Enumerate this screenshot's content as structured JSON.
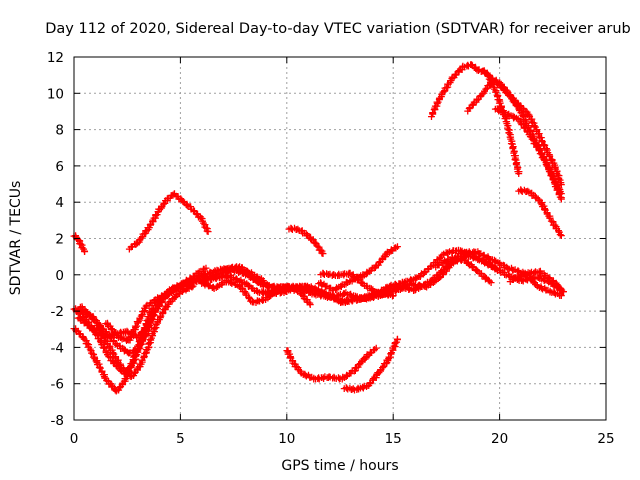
{
  "chart_data": {
    "type": "scatter",
    "title": "Day 112 of 2020, Sidereal Day-to-day VTEC variation (SDTVAR) for receiver arub",
    "xlabel": "GPS time / hours",
    "ylabel": "SDTVAR / TECUs",
    "xlim": [
      0,
      25
    ],
    "ylim": [
      -8,
      12
    ],
    "xticks": [
      0,
      5,
      10,
      15,
      20,
      25
    ],
    "yticks": [
      -8,
      -6,
      -4,
      -2,
      0,
      2,
      4,
      6,
      8,
      10,
      12
    ],
    "grid": true,
    "legend": "none",
    "marker_color": "#ff0000",
    "series": [
      {
        "name": "arc-01",
        "points": [
          [
            0.0,
            2.2
          ],
          [
            0.2,
            2.0
          ],
          [
            0.5,
            1.3
          ]
        ]
      },
      {
        "name": "arc-02",
        "points": [
          [
            2.6,
            1.5
          ],
          [
            3.0,
            1.8
          ],
          [
            3.5,
            2.6
          ],
          [
            4.0,
            3.6
          ],
          [
            4.4,
            4.2
          ],
          [
            4.7,
            4.5
          ],
          [
            5.1,
            4.1
          ],
          [
            5.6,
            3.6
          ],
          [
            6.0,
            3.1
          ],
          [
            6.3,
            2.4
          ]
        ]
      },
      {
        "name": "arc-03",
        "points": [
          [
            10.1,
            2.6
          ],
          [
            10.6,
            2.5
          ],
          [
            11.0,
            2.2
          ],
          [
            11.4,
            1.7
          ],
          [
            11.7,
            1.2
          ]
        ]
      },
      {
        "name": "arc-04",
        "points": [
          [
            16.8,
            8.8
          ],
          [
            17.2,
            9.8
          ],
          [
            17.8,
            10.9
          ],
          [
            18.3,
            11.5
          ],
          [
            18.7,
            11.6
          ],
          [
            19.0,
            11.3
          ],
          [
            19.4,
            11.2
          ],
          [
            19.8,
            10.2
          ],
          [
            20.3,
            8.6
          ],
          [
            20.6,
            7.2
          ],
          [
            20.9,
            5.6
          ]
        ]
      },
      {
        "name": "arc-05",
        "points": [
          [
            18.5,
            9.1
          ],
          [
            19.2,
            10.0
          ],
          [
            19.7,
            10.8
          ],
          [
            20.1,
            10.5
          ],
          [
            20.5,
            9.9
          ],
          [
            21.0,
            9.0
          ],
          [
            21.6,
            7.6
          ],
          [
            22.2,
            6.2
          ],
          [
            22.9,
            4.2
          ]
        ]
      },
      {
        "name": "arc-06",
        "points": [
          [
            19.8,
            9.2
          ],
          [
            20.3,
            8.9
          ],
          [
            20.9,
            8.6
          ],
          [
            21.5,
            7.6
          ],
          [
            22.1,
            6.4
          ],
          [
            22.6,
            5.2
          ],
          [
            22.9,
            4.5
          ]
        ]
      },
      {
        "name": "arc-07",
        "points": [
          [
            19.2,
            11.3
          ],
          [
            19.8,
            10.7
          ],
          [
            20.4,
            10.0
          ],
          [
            21.0,
            9.3
          ],
          [
            21.4,
            8.8
          ],
          [
            22.0,
            7.4
          ],
          [
            22.6,
            6.0
          ],
          [
            22.9,
            5.0
          ]
        ]
      },
      {
        "name": "arc-08",
        "points": [
          [
            20.9,
            4.7
          ],
          [
            21.4,
            4.6
          ],
          [
            21.9,
            4.1
          ],
          [
            22.4,
            3.1
          ],
          [
            22.9,
            2.2
          ]
        ]
      },
      {
        "name": "arc-09",
        "points": [
          [
            0.0,
            -1.8
          ],
          [
            0.6,
            -2.5
          ],
          [
            1.2,
            -3.5
          ],
          [
            1.6,
            -4.4
          ],
          [
            2.0,
            -5.0
          ],
          [
            2.4,
            -5.4
          ],
          [
            2.8,
            -4.8
          ],
          [
            3.2,
            -3.6
          ],
          [
            3.6,
            -2.4
          ],
          [
            4.0,
            -1.4
          ],
          [
            4.5,
            -0.8
          ],
          [
            5.2,
            -0.4
          ],
          [
            6.0,
            -0.2
          ],
          [
            6.8,
            0.1
          ],
          [
            7.5,
            0.3
          ],
          [
            8.2,
            0.0
          ],
          [
            8.8,
            -0.5
          ],
          [
            9.5,
            -0.7
          ],
          [
            10.2,
            -0.6
          ],
          [
            11.0,
            -0.8
          ]
        ]
      },
      {
        "name": "arc-10",
        "points": [
          [
            0.0,
            -2.9
          ],
          [
            0.5,
            -3.5
          ],
          [
            1.0,
            -4.6
          ],
          [
            1.5,
            -5.7
          ],
          [
            2.0,
            -6.4
          ],
          [
            2.4,
            -5.8
          ],
          [
            2.8,
            -4.6
          ],
          [
            3.2,
            -3.3
          ],
          [
            3.6,
            -2.0
          ],
          [
            4.2,
            -1.2
          ],
          [
            5.0,
            -0.6
          ],
          [
            5.8,
            -0.3
          ],
          [
            6.5,
            -0.2
          ],
          [
            7.2,
            0.0
          ],
          [
            8.0,
            -0.4
          ],
          [
            8.6,
            -0.9
          ],
          [
            9.2,
            -1.0
          ],
          [
            10.0,
            -0.9
          ]
        ]
      },
      {
        "name": "arc-11",
        "points": [
          [
            0.1,
            -1.9
          ],
          [
            0.8,
            -2.2
          ],
          [
            1.4,
            -3.0
          ],
          [
            2.0,
            -3.8
          ],
          [
            2.6,
            -4.3
          ],
          [
            3.0,
            -4.0
          ],
          [
            3.4,
            -3.2
          ],
          [
            3.8,
            -2.0
          ],
          [
            4.4,
            -1.0
          ],
          [
            5.2,
            -0.5
          ],
          [
            6.0,
            0.0
          ],
          [
            6.8,
            0.3
          ],
          [
            7.5,
            0.4
          ],
          [
            8.2,
            0.2
          ],
          [
            8.9,
            -0.3
          ]
        ]
      },
      {
        "name": "arc-12",
        "points": [
          [
            0.3,
            -1.7
          ],
          [
            1.0,
            -2.5
          ],
          [
            1.6,
            -3.8
          ],
          [
            2.2,
            -5.0
          ],
          [
            2.7,
            -5.6
          ],
          [
            3.1,
            -5.0
          ],
          [
            3.5,
            -3.9
          ],
          [
            3.9,
            -2.6
          ],
          [
            4.4,
            -1.6
          ],
          [
            5.0,
            -0.9
          ],
          [
            5.6,
            -0.6
          ]
        ]
      },
      {
        "name": "arc-13",
        "points": [
          [
            0.2,
            -2.3
          ],
          [
            0.9,
            -3.0
          ],
          [
            1.5,
            -3.4
          ],
          [
            2.0,
            -3.2
          ],
          [
            2.5,
            -3.1
          ],
          [
            3.0,
            -3.4
          ],
          [
            3.5,
            -2.8
          ]
        ]
      },
      {
        "name": "arc-14",
        "points": [
          [
            1.5,
            -2.6
          ],
          [
            2.1,
            -3.4
          ],
          [
            2.6,
            -3.6
          ],
          [
            3.0,
            -2.6
          ],
          [
            3.4,
            -1.7
          ],
          [
            3.9,
            -1.3
          ],
          [
            4.6,
            -0.8
          ],
          [
            5.2,
            -0.4
          ],
          [
            5.8,
            0.1
          ],
          [
            6.2,
            0.4
          ]
        ]
      },
      {
        "name": "arc-15",
        "points": [
          [
            6.0,
            -0.4
          ],
          [
            6.6,
            -0.7
          ],
          [
            7.2,
            -0.3
          ],
          [
            7.8,
            -0.6
          ],
          [
            8.4,
            -1.5
          ],
          [
            9.0,
            -1.3
          ],
          [
            9.6,
            -0.8
          ],
          [
            10.0,
            -0.6
          ],
          [
            10.6,
            -0.9
          ],
          [
            11.1,
            -1.6
          ]
        ]
      },
      {
        "name": "arc-16",
        "points": [
          [
            7.0,
            0.3
          ],
          [
            7.8,
            0.5
          ],
          [
            8.5,
            -0.2
          ],
          [
            9.2,
            -0.6
          ],
          [
            10.0,
            -0.7
          ],
          [
            10.8,
            -0.6
          ],
          [
            11.6,
            -0.9
          ],
          [
            12.5,
            -1.4
          ],
          [
            13.4,
            -1.3
          ],
          [
            14.2,
            -1.1
          ],
          [
            15.0,
            -0.9
          ],
          [
            15.8,
            -0.5
          ],
          [
            16.6,
            -0.6
          ],
          [
            17.2,
            -0.1
          ],
          [
            17.8,
            0.7
          ],
          [
            18.5,
            1.1
          ],
          [
            19.2,
            0.8
          ],
          [
            19.9,
            0.3
          ]
        ]
      },
      {
        "name": "arc-17",
        "points": [
          [
            9.0,
            -0.9
          ],
          [
            10.0,
            -0.8
          ],
          [
            11.0,
            -0.6
          ],
          [
            11.8,
            -1.0
          ],
          [
            12.6,
            -1.5
          ],
          [
            13.4,
            -1.3
          ],
          [
            14.2,
            -1.0
          ],
          [
            14.8,
            -0.6
          ],
          [
            15.5,
            -0.4
          ],
          [
            16.2,
            -0.1
          ],
          [
            16.8,
            0.5
          ],
          [
            17.4,
            1.2
          ],
          [
            18.0,
            1.4
          ],
          [
            18.6,
            1.2
          ],
          [
            19.4,
            0.7
          ],
          [
            20.2,
            0.1
          ],
          [
            21.0,
            -0.3
          ],
          [
            21.8,
            -0.1
          ],
          [
            22.4,
            -0.4
          ],
          [
            23.0,
            -0.9
          ]
        ]
      },
      {
        "name": "arc-18",
        "points": [
          [
            10.5,
            -0.7
          ],
          [
            11.2,
            -1.0
          ],
          [
            12.0,
            -1.2
          ],
          [
            12.8,
            -1.0
          ],
          [
            13.6,
            -1.3
          ],
          [
            14.4,
            -1.1
          ],
          [
            15.2,
            -0.6
          ],
          [
            16.0,
            -0.8
          ],
          [
            16.8,
            -0.3
          ],
          [
            17.6,
            0.6
          ],
          [
            18.2,
            1.2
          ],
          [
            18.9,
            1.3
          ],
          [
            19.6,
            0.9
          ],
          [
            20.4,
            0.4
          ],
          [
            21.2,
            0.1
          ],
          [
            21.9,
            0.2
          ],
          [
            22.5,
            -0.3
          ],
          [
            23.0,
            -0.9
          ]
        ]
      },
      {
        "name": "arc-19",
        "points": [
          [
            11.5,
            -0.4
          ],
          [
            12.2,
            -0.8
          ],
          [
            13.0,
            -0.3
          ],
          [
            13.6,
            0.0
          ],
          [
            14.2,
            0.5
          ],
          [
            14.7,
            1.2
          ],
          [
            15.2,
            1.6
          ]
        ]
      },
      {
        "name": "arc-20",
        "points": [
          [
            11.6,
            0.1
          ],
          [
            12.3,
            0.0
          ],
          [
            13.0,
            0.1
          ],
          [
            13.6,
            -0.5
          ],
          [
            14.3,
            -1.0
          ],
          [
            15.0,
            -1.1
          ]
        ]
      },
      {
        "name": "arc-21",
        "points": [
          [
            17.0,
            0.5
          ],
          [
            17.8,
            1.0
          ],
          [
            18.4,
            0.8
          ],
          [
            19.0,
            0.2
          ],
          [
            19.6,
            -0.4
          ]
        ]
      },
      {
        "name": "arc-22",
        "points": [
          [
            20.5,
            -0.3
          ],
          [
            21.2,
            0.1
          ],
          [
            21.8,
            -0.6
          ],
          [
            22.4,
            -0.9
          ],
          [
            22.9,
            -1.1
          ]
        ]
      },
      {
        "name": "arc-23",
        "points": [
          [
            10.0,
            -4.1
          ],
          [
            10.3,
            -4.8
          ],
          [
            10.7,
            -5.4
          ],
          [
            11.3,
            -5.7
          ],
          [
            12.0,
            -5.6
          ],
          [
            12.6,
            -5.7
          ],
          [
            13.2,
            -5.2
          ],
          [
            13.7,
            -4.5
          ],
          [
            14.2,
            -4.0
          ]
        ]
      },
      {
        "name": "arc-24",
        "points": [
          [
            12.7,
            -6.2
          ],
          [
            13.2,
            -6.3
          ],
          [
            13.8,
            -6.1
          ],
          [
            14.3,
            -5.4
          ],
          [
            14.8,
            -4.6
          ],
          [
            15.2,
            -3.5
          ]
        ]
      }
    ]
  }
}
